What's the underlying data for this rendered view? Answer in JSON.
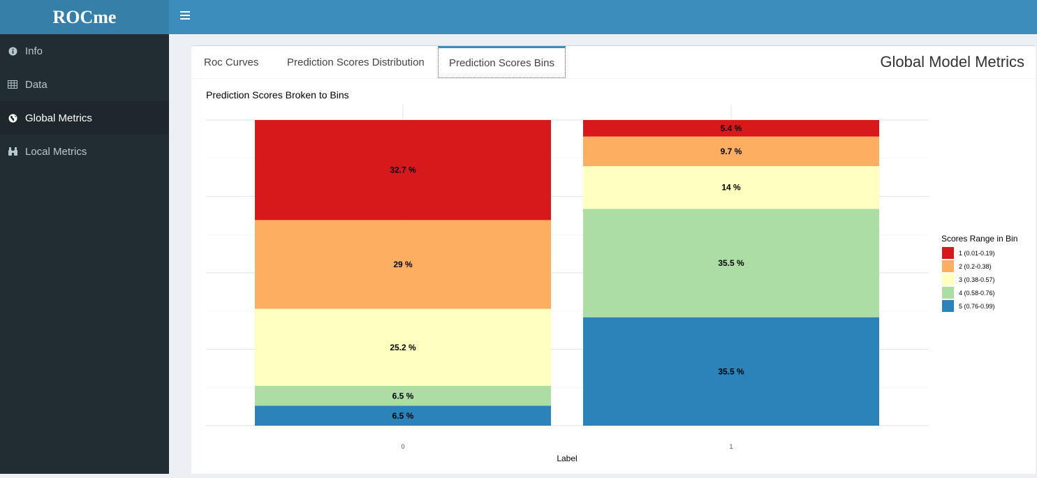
{
  "app": {
    "logo": "ROCme"
  },
  "sidebar": {
    "items": [
      {
        "label": "Info",
        "icon": "info-circle-icon",
        "active": false
      },
      {
        "label": "Data",
        "icon": "table-icon",
        "active": false
      },
      {
        "label": "Global Metrics",
        "icon": "globe-icon",
        "active": true
      },
      {
        "label": "Local Metrics",
        "icon": "binoculars-icon",
        "active": false
      }
    ]
  },
  "tabs": [
    {
      "label": "Roc Curves",
      "active": false
    },
    {
      "label": "Prediction Scores Distribution",
      "active": false
    },
    {
      "label": "Prediction Scores Bins",
      "active": true
    }
  ],
  "panel": {
    "title": "Global Model Metrics"
  },
  "chart_data": {
    "type": "bar",
    "stacked": true,
    "title": "Prediction Scores Broken to Bins",
    "xlabel": "Label",
    "ylabel": "",
    "categories": [
      "0",
      "1"
    ],
    "ylim": [
      0,
      100
    ],
    "grid": true,
    "legend": {
      "title": "Scores Range in Bin",
      "position": "right"
    },
    "series": [
      {
        "name": "1 (0.01-0.19)",
        "color": "#d7191c",
        "values": [
          32.7,
          5.4
        ],
        "labels": [
          "32.7 %",
          "5.4 %"
        ]
      },
      {
        "name": "2 (0.2-0.38)",
        "color": "#fdae61",
        "values": [
          29,
          9.7
        ],
        "labels": [
          "29 %",
          "9.7 %"
        ]
      },
      {
        "name": "3 (0.38-0.57)",
        "color": "#ffffbf",
        "values": [
          25.2,
          14
        ],
        "labels": [
          "25.2 %",
          "14 %"
        ]
      },
      {
        "name": "4 (0.58-0.76)",
        "color": "#abdda4",
        "values": [
          6.5,
          35.5
        ],
        "labels": [
          "6.5 %",
          "35.5 %"
        ]
      },
      {
        "name": "5 (0.76-0.99)",
        "color": "#2b83ba",
        "values": [
          6.5,
          35.5
        ],
        "labels": [
          "6.5 %",
          "35.5 %"
        ]
      }
    ]
  }
}
